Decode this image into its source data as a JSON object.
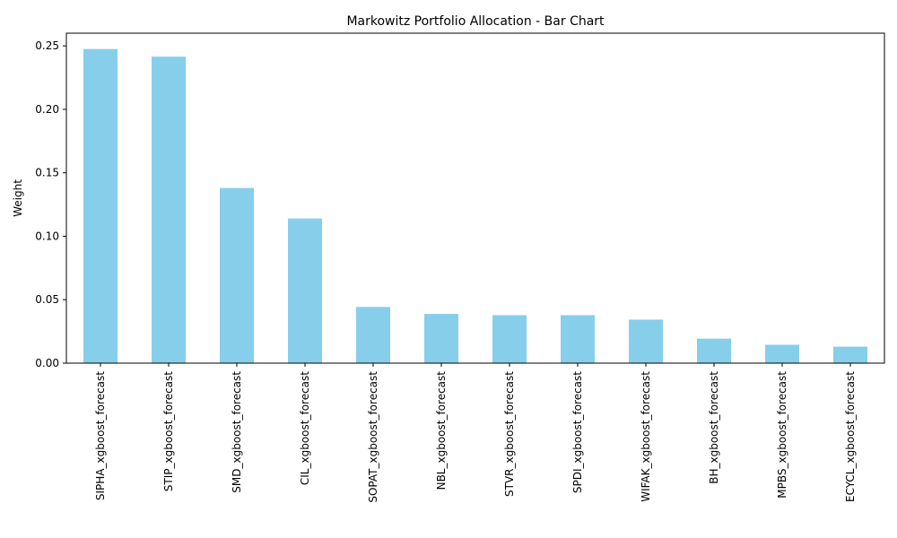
{
  "chart_data": {
    "type": "bar",
    "title": "Markowitz Portfolio Allocation - Bar Chart",
    "xlabel": "",
    "ylabel": "Weight",
    "ylim": [
      0,
      0.26
    ],
    "yticks": [
      "0.00",
      "0.05",
      "0.10",
      "0.15",
      "0.20",
      "0.25"
    ],
    "grid": false,
    "legend": "none",
    "bar_color": "#87CEEB",
    "categories": [
      "SIPHA_xgboost_forecast",
      "STIP_xgboost_forecast",
      "SMD_xgboost_forecast",
      "CIL_xgboost_forecast",
      "SOPAT_xgboost_forecast",
      "NBL_xgboost_forecast",
      "STVR_xgboost_forecast",
      "SPDI_xgboost_forecast",
      "WIFAK_xgboost_forecast",
      "BH_xgboost_forecast",
      "MPBS_xgboost_forecast",
      "ECYCL_xgboost_forecast"
    ],
    "values": [
      0.2475,
      0.2415,
      0.138,
      0.114,
      0.0443,
      0.0388,
      0.0378,
      0.0378,
      0.0343,
      0.0193,
      0.0145,
      0.013
    ]
  }
}
